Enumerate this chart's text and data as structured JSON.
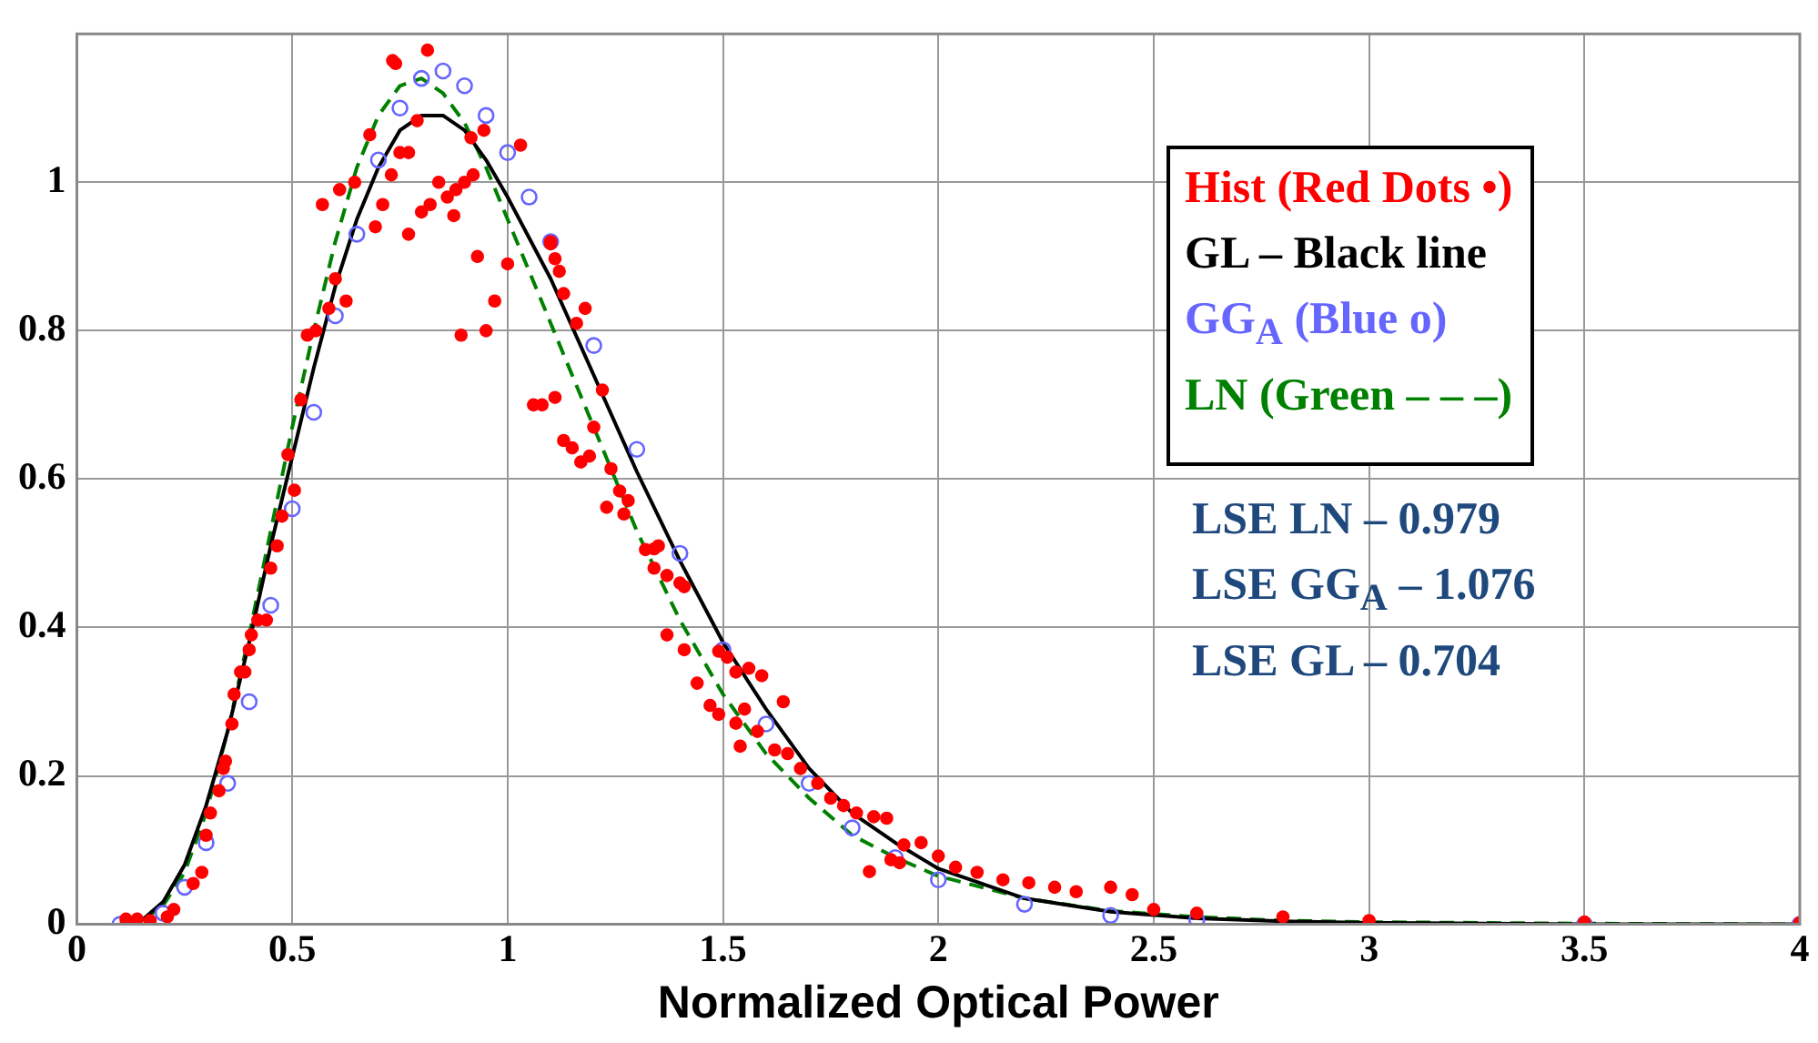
{
  "chart_data": {
    "type": "scatter",
    "xlabel": "Normalized Optical Power",
    "xlim": [
      0,
      4
    ],
    "xticks": [
      0,
      0.5,
      1,
      1.5,
      2,
      2.5,
      3,
      3.5,
      4
    ],
    "ylim": [
      0,
      1.2
    ],
    "yticks": [
      0,
      0.2,
      0.4,
      0.6,
      0.8,
      1
    ],
    "grid": true,
    "legend": "top right",
    "annotations": [
      "LSE LN – 0.979",
      "LSE GG$_{A}$ – 1.076",
      "LSE GL – 0.704"
    ],
    "series": [
      {
        "name": "Hist (Red Dots •)",
        "marker": "circle",
        "color": "#ff0000",
        "x": [
          0.114,
          0.14,
          0.17,
          0.21,
          0.225,
          0.27,
          0.29,
          0.3,
          0.31,
          0.33,
          0.34,
          0.345,
          0.36,
          0.365,
          0.38,
          0.39,
          0.4,
          0.405,
          0.42,
          0.44,
          0.45,
          0.465,
          0.476,
          0.505,
          0.49,
          0.52,
          0.535,
          0.555,
          0.585,
          0.6,
          0.625,
          0.57,
          0.61,
          0.645,
          0.68,
          0.693,
          0.71,
          0.73,
          0.733,
          0.74,
          0.75,
          0.77,
          0.77,
          0.79,
          0.8,
          0.814,
          0.82,
          0.84,
          0.86,
          0.875,
          0.88,
          0.892,
          0.9,
          0.915,
          0.92,
          0.93,
          0.945,
          0.95,
          0.97,
          1.0,
          1.03,
          1.06,
          1.08,
          1.1,
          1.1,
          1.11,
          1.11,
          1.12,
          1.13,
          1.13,
          1.15,
          1.16,
          1.17,
          1.18,
          1.19,
          1.2,
          1.22,
          1.24,
          1.26,
          1.27,
          1.23,
          1.28,
          1.32,
          1.34,
          1.35,
          1.34,
          1.37,
          1.4,
          1.41,
          1.37,
          1.41,
          1.44,
          1.47,
          1.49,
          1.53,
          1.49,
          1.51,
          1.53,
          1.56,
          1.59,
          1.64,
          1.55,
          1.54,
          1.58,
          1.62,
          1.65,
          1.68,
          1.72,
          1.75,
          1.78,
          1.81,
          1.85,
          1.88,
          1.84,
          1.89,
          1.91,
          1.92,
          1.96,
          2.0,
          2.04,
          2.09,
          2.15,
          2.21,
          2.27,
          2.32,
          2.4,
          2.45,
          2.5,
          2.6,
          2.8,
          3.0,
          3.5,
          4.0
        ],
        "values": [
          0.007,
          0.007,
          0.005,
          0.01,
          0.02,
          0.055,
          0.07,
          0.12,
          0.15,
          0.18,
          0.21,
          0.22,
          0.27,
          0.31,
          0.34,
          0.34,
          0.37,
          0.39,
          0.41,
          0.41,
          0.48,
          0.51,
          0.55,
          0.585,
          0.633,
          0.707,
          0.794,
          0.8,
          0.83,
          0.87,
          0.84,
          0.97,
          0.99,
          1.0,
          1.064,
          0.94,
          0.97,
          1.01,
          1.164,
          1.16,
          1.04,
          1.04,
          0.93,
          1.083,
          0.96,
          1.178,
          0.97,
          1.0,
          0.98,
          0.955,
          0.99,
          0.794,
          1.0,
          1.06,
          1.01,
          0.9,
          1.07,
          0.8,
          0.84,
          0.89,
          1.05,
          0.7,
          0.7,
          0.917,
          0.92,
          0.71,
          0.897,
          0.88,
          0.85,
          0.652,
          0.642,
          0.81,
          0.623,
          0.83,
          0.631,
          0.67,
          0.72,
          0.614,
          0.584,
          0.553,
          0.562,
          0.571,
          0.505,
          0.506,
          0.51,
          0.48,
          0.47,
          0.46,
          0.455,
          0.39,
          0.37,
          0.325,
          0.295,
          0.283,
          0.271,
          0.368,
          0.36,
          0.34,
          0.345,
          0.335,
          0.3,
          0.29,
          0.24,
          0.26,
          0.235,
          0.23,
          0.21,
          0.19,
          0.17,
          0.16,
          0.15,
          0.145,
          0.143,
          0.071,
          0.087,
          0.083,
          0.107,
          0.11,
          0.092,
          0.077,
          0.07,
          0.06,
          0.056,
          0.05,
          0.044,
          0.05,
          0.04,
          0.02,
          0.015,
          0.01,
          0.005,
          0.003,
          0.002
        ]
      },
      {
        "name": "GL – Black line",
        "type": "line",
        "marker": "none",
        "line_style": "solid",
        "color": "#000000",
        "x": [
          0.1,
          0.15,
          0.2,
          0.25,
          0.3,
          0.35,
          0.4,
          0.45,
          0.5,
          0.55,
          0.6,
          0.65,
          0.7,
          0.75,
          0.8,
          0.85,
          0.9,
          0.95,
          1.0,
          1.1,
          1.2,
          1.3,
          1.4,
          1.5,
          1.6,
          1.7,
          1.8,
          1.9,
          2.0,
          2.2,
          2.4,
          2.6,
          2.8,
          3.0,
          3.5,
          4.0
        ],
        "values": [
          0,
          0.005,
          0.03,
          0.08,
          0.16,
          0.26,
          0.38,
          0.51,
          0.63,
          0.75,
          0.86,
          0.95,
          1.02,
          1.07,
          1.09,
          1.09,
          1.07,
          1.03,
          0.98,
          0.87,
          0.74,
          0.61,
          0.49,
          0.38,
          0.29,
          0.21,
          0.15,
          0.11,
          0.075,
          0.035,
          0.017,
          0.008,
          0.004,
          0.002,
          0,
          0
        ]
      },
      {
        "name": "GG$_{A}$ (Blue o)",
        "marker": "circle",
        "color": "#6666ff",
        "x": [
          0.1,
          0.2,
          0.25,
          0.3,
          0.35,
          0.4,
          0.45,
          0.5,
          0.55,
          0.6,
          0.65,
          0.7,
          0.75,
          0.8,
          0.85,
          0.9,
          0.95,
          1.0,
          1.05,
          1.1,
          1.2,
          1.3,
          1.4,
          1.5,
          1.6,
          1.7,
          1.8,
          1.9,
          2.0,
          2.2,
          2.4,
          2.6,
          3.5,
          4.0
        ],
        "values": [
          0,
          0.015,
          0.05,
          0.11,
          0.19,
          0.3,
          0.43,
          0.56,
          0.69,
          0.82,
          0.93,
          1.03,
          1.1,
          1.14,
          1.15,
          1.13,
          1.09,
          1.04,
          0.98,
          0.92,
          0.78,
          0.64,
          0.5,
          0.37,
          0.27,
          0.19,
          0.13,
          0.09,
          0.06,
          0.027,
          0.012,
          0.006,
          0,
          0
        ]
      },
      {
        "name": "LN (Green – – –)",
        "type": "line",
        "marker": "none",
        "line_style": "dashed",
        "color": "#008000",
        "x": [
          0.1,
          0.15,
          0.2,
          0.25,
          0.3,
          0.35,
          0.4,
          0.45,
          0.5,
          0.55,
          0.6,
          0.65,
          0.7,
          0.75,
          0.8,
          0.85,
          0.9,
          0.95,
          1.0,
          1.1,
          1.2,
          1.3,
          1.4,
          1.5,
          1.6,
          1.7,
          1.8,
          1.9,
          2.0,
          2.2,
          2.4,
          2.6,
          2.8,
          3.0,
          3.5,
          4.0
        ],
        "values": [
          0,
          0.004,
          0.025,
          0.07,
          0.15,
          0.26,
          0.39,
          0.53,
          0.67,
          0.8,
          0.92,
          1.02,
          1.09,
          1.13,
          1.14,
          1.12,
          1.08,
          1.02,
          0.95,
          0.81,
          0.67,
          0.53,
          0.41,
          0.31,
          0.23,
          0.17,
          0.12,
          0.09,
          0.065,
          0.035,
          0.018,
          0.01,
          0.005,
          0.003,
          0.001,
          0
        ]
      }
    ]
  }
}
